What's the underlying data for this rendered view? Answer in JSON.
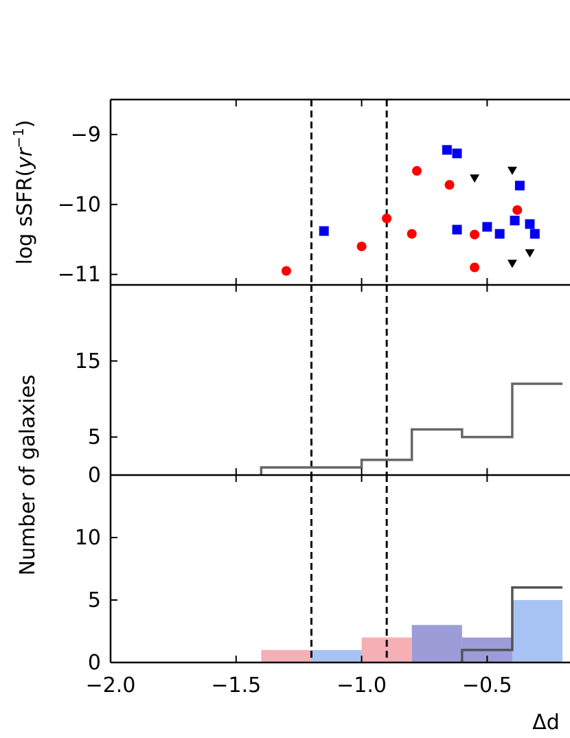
{
  "chart_data": [
    {
      "type": "scatter",
      "panel": "top",
      "ylabel": "log sSFR(yr⁻¹)",
      "ylabel_parts": [
        "log sSFR(",
        "yr",
        "−1",
        ")"
      ],
      "ylim": [
        -11.15,
        -8.5
      ],
      "yticks": [
        -9,
        -10,
        -11
      ],
      "ytick_labels": [
        "−9",
        "−10",
        "−11"
      ],
      "series": [
        {
          "marker": "circle",
          "color": "#ff0000",
          "points": [
            [
              -1.3,
              -10.95
            ],
            [
              -1.0,
              -10.6
            ],
            [
              -0.9,
              -10.2
            ],
            [
              -0.78,
              -9.52
            ],
            [
              -0.8,
              -10.42
            ],
            [
              -0.65,
              -9.72
            ],
            [
              -0.55,
              -10.43
            ],
            [
              -0.55,
              -10.9
            ],
            [
              -0.38,
              -10.08
            ]
          ]
        },
        {
          "marker": "square",
          "color": "#0000ee",
          "points": [
            [
              -1.15,
              -10.38
            ],
            [
              -0.66,
              -9.22
            ],
            [
              -0.62,
              -9.27
            ],
            [
              -0.62,
              -10.36
            ],
            [
              -0.5,
              -10.32
            ],
            [
              -0.45,
              -10.42
            ],
            [
              -0.39,
              -10.23
            ],
            [
              -0.37,
              -9.73
            ],
            [
              -0.33,
              -10.28
            ],
            [
              -0.31,
              -10.42
            ]
          ]
        },
        {
          "marker": "triangle-down",
          "color": "#000000",
          "points": [
            [
              -0.55,
              -9.63
            ],
            [
              -0.4,
              -9.52
            ],
            [
              -0.4,
              -10.85
            ],
            [
              -0.33,
              -10.7
            ]
          ]
        }
      ],
      "vlines": [
        -1.2,
        -0.9
      ]
    },
    {
      "type": "histogram",
      "panel": "middle",
      "ylabel": "Number of galaxies",
      "ylim": [
        0,
        25
      ],
      "yticks": [
        0,
        5,
        15
      ],
      "ytick_labels": [
        "0",
        "5",
        "15"
      ],
      "series": [
        {
          "style": "step",
          "color": "#666666",
          "bins": [
            [
              -1.4,
              -1.0,
              1
            ],
            [
              -1.0,
              -0.8,
              2
            ],
            [
              -0.8,
              -0.6,
              6
            ],
            [
              -0.6,
              -0.4,
              5
            ],
            [
              -0.4,
              -0.2,
              12
            ]
          ]
        }
      ],
      "vlines": [
        -1.2,
        -0.9
      ]
    },
    {
      "type": "histogram",
      "panel": "bottom",
      "xlabel": "Δd",
      "xlim": [
        -2.0,
        -0.17
      ],
      "xticks": [
        -2.0,
        -1.5,
        -1.0,
        -0.5
      ],
      "xtick_labels": [
        "−2.0",
        "−1.5",
        "−1.0",
        "−0.5"
      ],
      "ylim": [
        0,
        15
      ],
      "yticks": [
        0,
        5,
        10
      ],
      "ytick_labels": [
        "0",
        "5",
        "10"
      ],
      "series": [
        {
          "style": "filled",
          "color": "#f4b0b4",
          "bins": [
            [
              -1.4,
              -1.2,
              1
            ],
            [
              -1.0,
              -0.8,
              2
            ]
          ]
        },
        {
          "style": "filled",
          "color": "#a6c3f3",
          "bins": [
            [
              -1.2,
              -1.0,
              1
            ],
            [
              -0.4,
              -0.2,
              5
            ]
          ]
        },
        {
          "style": "filled",
          "color": "#9c9cd6",
          "bins": [
            [
              -0.8,
              -0.6,
              3
            ],
            [
              -0.6,
              -0.4,
              2
            ]
          ]
        },
        {
          "style": "step",
          "color": "#555555",
          "bins": [
            [
              -0.6,
              -0.4,
              1
            ],
            [
              -0.4,
              -0.2,
              6
            ]
          ]
        }
      ],
      "vlines": [
        -1.2,
        -0.9
      ]
    }
  ]
}
